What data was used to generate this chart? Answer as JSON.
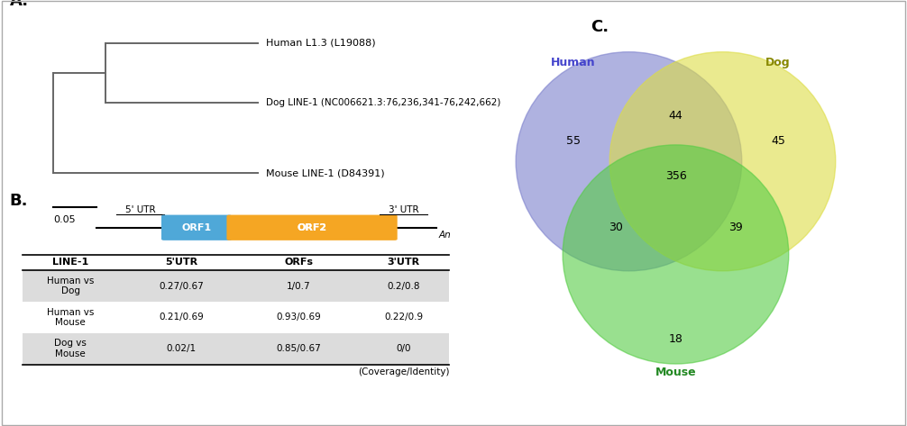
{
  "panel_A_label": "A.",
  "panel_B_label": "B.",
  "panel_C_label": "C.",
  "tree_labels": [
    "Human L1.3 (L19088)",
    "Dog LINE-1 (NC006621.3:76,236,341-76,242,662)",
    "Mouse LINE-1 (D84391)"
  ],
  "scale_bar_value": "0.05",
  "orf1_color": "#4FA8D8",
  "orf2_color": "#F5A623",
  "orf1_label": "ORF1",
  "orf2_label": "ORF2",
  "utr5_label": "5' UTR",
  "utr3_label": "3' UTR",
  "an_label": "An",
  "table_headers": [
    "LINE-1",
    "5'UTR",
    "ORFs",
    "3'UTR"
  ],
  "table_rows": [
    [
      "Human vs\nDog",
      "0.27/0.67",
      "1/0.7",
      "0.2/0.8"
    ],
    [
      "Human vs\nMouse",
      "0.21/0.69",
      "0.93/0.69",
      "0.22/0.9"
    ],
    [
      "Dog vs\nMouse",
      "0.02/1",
      "0.85/0.67",
      "0/0"
    ]
  ],
  "table_footer": "(Coverage/Identity)",
  "venn_human_color": "#7B7FCC",
  "venn_dog_color": "#DDDD44",
  "venn_mouse_color": "#55CC44",
  "venn_human_label": "Human",
  "venn_dog_label": "Dog",
  "venn_mouse_label": "Mouse",
  "venn_human_label_color": "#4444CC",
  "venn_dog_label_color": "#888800",
  "venn_mouse_label_color": "#228822",
  "venn_numbers": {
    "human_only": "55",
    "dog_only": "45",
    "mouse_only": "18",
    "human_dog": "44",
    "human_mouse": "30",
    "dog_mouse": "39",
    "all_three": "356"
  },
  "bg_color": "#ffffff",
  "border_color": "#aaaaaa"
}
